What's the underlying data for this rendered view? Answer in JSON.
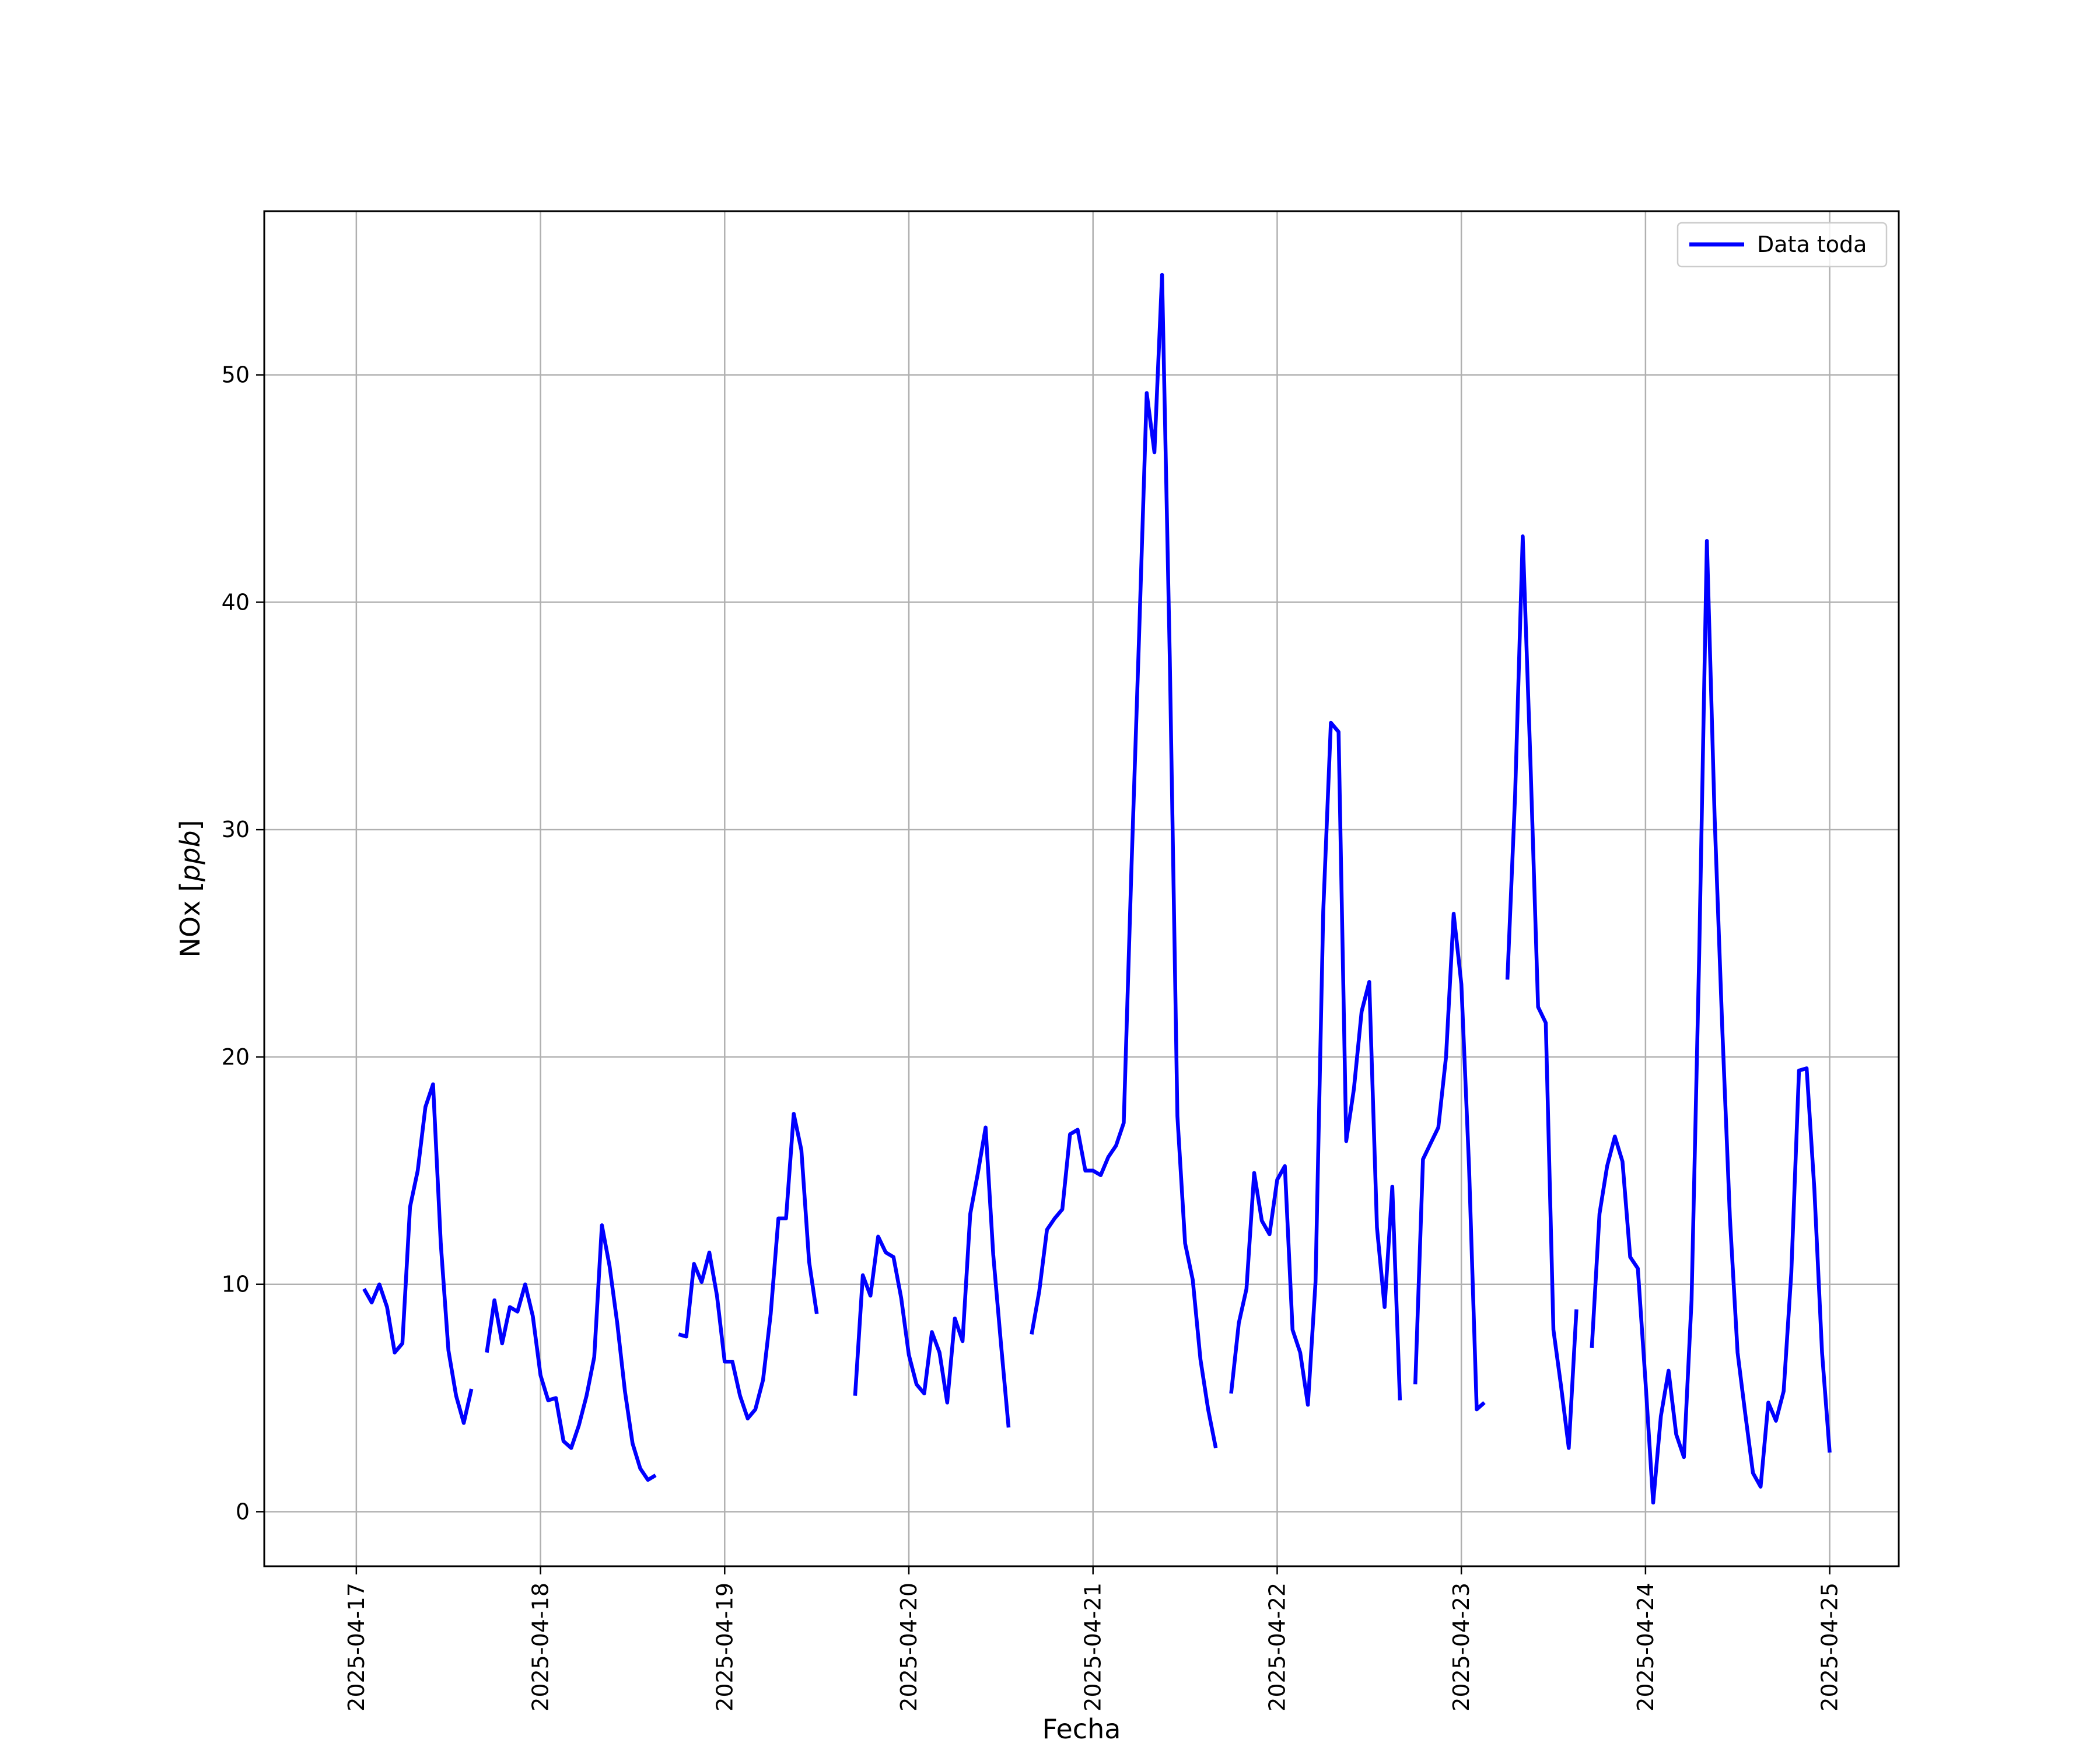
{
  "chart_data": {
    "type": "line",
    "xlabel": "Fecha",
    "ylabel": {
      "prefix": "NOx [",
      "unit": "ppb",
      "suffix": "]"
    },
    "xlim": [
      "2025-04-16 12:00",
      "2025-04-25 09:00"
    ],
    "ylim": [
      -2.4,
      57.2
    ],
    "x_ticks": [
      "2025-04-17",
      "2025-04-18",
      "2025-04-19",
      "2025-04-20",
      "2025-04-21",
      "2025-04-22",
      "2025-04-23",
      "2025-04-24",
      "2025-04-25"
    ],
    "y_ticks": [
      0,
      10,
      20,
      30,
      40,
      50
    ],
    "grid": true,
    "legend_position": "top-right",
    "series": [
      {
        "name": "Data toda",
        "color": "#0000ff",
        "segments": [
          [
            [
              "2025-04-17 01:00",
              9.8
            ],
            [
              "2025-04-17 02:00",
              9.2
            ],
            [
              "2025-04-17 03:00",
              10.0
            ],
            [
              "2025-04-17 04:00",
              9.0
            ],
            [
              "2025-04-17 05:00",
              7.0
            ],
            [
              "2025-04-17 06:00",
              7.4
            ],
            [
              "2025-04-17 07:00",
              13.4
            ],
            [
              "2025-04-17 08:00",
              15.0
            ],
            [
              "2025-04-17 09:00",
              17.8
            ],
            [
              "2025-04-17 10:00",
              18.8
            ],
            [
              "2025-04-17 11:00",
              11.8
            ],
            [
              "2025-04-17 12:00",
              7.1
            ],
            [
              "2025-04-17 13:00",
              5.1
            ],
            [
              "2025-04-17 14:00",
              3.9
            ],
            [
              "2025-04-17 15:00",
              5.4
            ]
          ],
          [
            [
              "2025-04-17 17:00",
              7.0
            ],
            [
              "2025-04-17 18:00",
              9.3
            ],
            [
              "2025-04-17 19:00",
              7.4
            ],
            [
              "2025-04-17 20:00",
              9.0
            ],
            [
              "2025-04-17 21:00",
              8.8
            ],
            [
              "2025-04-17 22:00",
              10.0
            ],
            [
              "2025-04-17 23:00",
              8.6
            ],
            [
              "2025-04-18 00:00",
              6.0
            ],
            [
              "2025-04-18 01:00",
              4.9
            ],
            [
              "2025-04-18 02:00",
              5.0
            ],
            [
              "2025-04-18 03:00",
              3.1
            ],
            [
              "2025-04-18 04:00",
              2.8
            ],
            [
              "2025-04-18 05:00",
              3.8
            ],
            [
              "2025-04-18 06:00",
              5.1
            ],
            [
              "2025-04-18 07:00",
              6.8
            ],
            [
              "2025-04-18 08:00",
              12.6
            ],
            [
              "2025-04-18 09:00",
              10.8
            ],
            [
              "2025-04-18 10:00",
              8.3
            ],
            [
              "2025-04-18 11:00",
              5.3
            ],
            [
              "2025-04-18 12:00",
              3.0
            ],
            [
              "2025-04-18 13:00",
              1.9
            ],
            [
              "2025-04-18 14:00",
              1.4
            ],
            [
              "2025-04-18 15:00",
              1.6
            ]
          ],
          [
            [
              "2025-04-18 18:00",
              7.8
            ],
            [
              "2025-04-18 19:00",
              7.7
            ],
            [
              "2025-04-18 20:00",
              10.9
            ],
            [
              "2025-04-18 21:00",
              10.1
            ],
            [
              "2025-04-18 22:00",
              11.4
            ],
            [
              "2025-04-18 23:00",
              9.5
            ],
            [
              "2025-04-19 00:00",
              6.6
            ],
            [
              "2025-04-19 01:00",
              6.6
            ],
            [
              "2025-04-19 02:00",
              5.1
            ],
            [
              "2025-04-19 03:00",
              4.1
            ],
            [
              "2025-04-19 04:00",
              4.5
            ],
            [
              "2025-04-19 05:00",
              5.8
            ],
            [
              "2025-04-19 06:00",
              8.7
            ],
            [
              "2025-04-19 07:00",
              12.9
            ],
            [
              "2025-04-19 08:00",
              12.9
            ],
            [
              "2025-04-19 09:00",
              17.5
            ],
            [
              "2025-04-19 10:00",
              15.9
            ],
            [
              "2025-04-19 11:00",
              11.0
            ],
            [
              "2025-04-19 12:00",
              8.7
            ]
          ],
          [
            [
              "2025-04-19 17:00",
              5.1
            ],
            [
              "2025-04-19 18:00",
              10.4
            ],
            [
              "2025-04-19 19:00",
              9.5
            ],
            [
              "2025-04-19 20:00",
              12.1
            ],
            [
              "2025-04-19 21:00",
              11.4
            ],
            [
              "2025-04-19 22:00",
              11.2
            ],
            [
              "2025-04-19 23:00",
              9.4
            ],
            [
              "2025-04-20 00:00",
              6.9
            ],
            [
              "2025-04-20 01:00",
              5.6
            ],
            [
              "2025-04-20 02:00",
              5.2
            ],
            [
              "2025-04-20 03:00",
              7.9
            ],
            [
              "2025-04-20 04:00",
              7.0
            ],
            [
              "2025-04-20 05:00",
              4.8
            ],
            [
              "2025-04-20 06:00",
              8.5
            ],
            [
              "2025-04-20 07:00",
              7.5
            ],
            [
              "2025-04-20 08:00",
              13.1
            ],
            [
              "2025-04-20 09:00",
              14.9
            ],
            [
              "2025-04-20 10:00",
              16.9
            ],
            [
              "2025-04-20 11:00",
              11.3
            ],
            [
              "2025-04-20 12:00",
              7.4
            ],
            [
              "2025-04-20 13:00",
              3.7
            ]
          ],
          [
            [
              "2025-04-20 16:00",
              7.8
            ],
            [
              "2025-04-20 17:00",
              9.7
            ],
            [
              "2025-04-20 18:00",
              12.4
            ],
            [
              "2025-04-20 19:00",
              12.9
            ],
            [
              "2025-04-20 20:00",
              13.3
            ],
            [
              "2025-04-20 21:00",
              16.6
            ],
            [
              "2025-04-20 22:00",
              16.8
            ],
            [
              "2025-04-20 23:00",
              15.0
            ],
            [
              "2025-04-21 00:00",
              15.0
            ],
            [
              "2025-04-21 01:00",
              14.8
            ],
            [
              "2025-04-21 02:00",
              15.6
            ],
            [
              "2025-04-21 03:00",
              16.1
            ],
            [
              "2025-04-21 04:00",
              17.1
            ],
            [
              "2025-04-21 05:00",
              28.2
            ],
            [
              "2025-04-21 06:00",
              38.5
            ],
            [
              "2025-04-21 07:00",
              49.2
            ],
            [
              "2025-04-21 08:00",
              46.6
            ],
            [
              "2025-04-21 09:00",
              54.4
            ],
            [
              "2025-04-21 10:00",
              37.6
            ],
            [
              "2025-04-21 11:00",
              17.4
            ],
            [
              "2025-04-21 12:00",
              11.8
            ],
            [
              "2025-04-21 13:00",
              10.2
            ],
            [
              "2025-04-21 14:00",
              6.7
            ],
            [
              "2025-04-21 15:00",
              4.5
            ],
            [
              "2025-04-21 16:00",
              2.8
            ]
          ],
          [
            [
              "2025-04-21 18:00",
              5.2
            ],
            [
              "2025-04-21 19:00",
              8.3
            ],
            [
              "2025-04-21 20:00",
              9.8
            ],
            [
              "2025-04-21 21:00",
              14.9
            ],
            [
              "2025-04-21 22:00",
              12.8
            ],
            [
              "2025-04-21 23:00",
              12.2
            ],
            [
              "2025-04-22 00:00",
              14.6
            ],
            [
              "2025-04-22 01:00",
              15.2
            ],
            [
              "2025-04-22 02:00",
              8.0
            ],
            [
              "2025-04-22 03:00",
              7.0
            ],
            [
              "2025-04-22 04:00",
              4.7
            ],
            [
              "2025-04-22 05:00",
              10.1
            ],
            [
              "2025-04-22 06:00",
              26.4
            ],
            [
              "2025-04-22 07:00",
              34.7
            ],
            [
              "2025-04-22 08:00",
              34.3
            ],
            [
              "2025-04-22 09:00",
              16.3
            ],
            [
              "2025-04-22 10:00",
              18.6
            ],
            [
              "2025-04-22 11:00",
              22.0
            ],
            [
              "2025-04-22 12:00",
              23.3
            ],
            [
              "2025-04-22 13:00",
              12.5
            ],
            [
              "2025-04-22 14:00",
              9.0
            ],
            [
              "2025-04-22 15:00",
              14.3
            ],
            [
              "2025-04-22 16:00",
              4.9
            ]
          ],
          [
            [
              "2025-04-22 18:00",
              5.6
            ],
            [
              "2025-04-22 19:00",
              15.5
            ],
            [
              "2025-04-22 20:00",
              16.2
            ],
            [
              "2025-04-22 21:00",
              16.9
            ],
            [
              "2025-04-22 22:00",
              20.0
            ],
            [
              "2025-04-22 23:00",
              26.3
            ],
            [
              "2025-04-23 00:00",
              23.2
            ],
            [
              "2025-04-23 01:00",
              15.2
            ],
            [
              "2025-04-23 02:00",
              4.5
            ],
            [
              "2025-04-23 03:00",
              4.8
            ]
          ],
          [
            [
              "2025-04-23 06:00",
              23.4
            ],
            [
              "2025-04-23 07:00",
              31.5
            ],
            [
              "2025-04-23 08:00",
              42.9
            ],
            [
              "2025-04-23 09:00",
              33.0
            ],
            [
              "2025-04-23 10:00",
              22.2
            ],
            [
              "2025-04-23 11:00",
              21.5
            ],
            [
              "2025-04-23 12:00",
              8.0
            ],
            [
              "2025-04-23 13:00",
              5.5
            ],
            [
              "2025-04-23 14:00",
              2.8
            ],
            [
              "2025-04-23 15:00",
              8.9
            ]
          ],
          [
            [
              "2025-04-23 17:00",
              7.2
            ],
            [
              "2025-04-23 18:00",
              13.1
            ],
            [
              "2025-04-23 19:00",
              15.2
            ],
            [
              "2025-04-23 20:00",
              16.5
            ],
            [
              "2025-04-23 21:00",
              15.4
            ],
            [
              "2025-04-23 22:00",
              11.2
            ],
            [
              "2025-04-23 23:00",
              10.7
            ],
            [
              "2025-04-24 00:00",
              5.7
            ],
            [
              "2025-04-24 01:00",
              0.4
            ],
            [
              "2025-04-24 02:00",
              4.2
            ],
            [
              "2025-04-24 03:00",
              6.2
            ],
            [
              "2025-04-24 04:00",
              3.4
            ],
            [
              "2025-04-24 05:00",
              2.4
            ],
            [
              "2025-04-24 06:00",
              9.3
            ],
            [
              "2025-04-24 07:00",
              24.6
            ],
            [
              "2025-04-24 08:00",
              42.7
            ],
            [
              "2025-04-24 09:00",
              30.6
            ],
            [
              "2025-04-24 10:00",
              21.3
            ],
            [
              "2025-04-24 11:00",
              12.9
            ],
            [
              "2025-04-24 12:00",
              7.0
            ],
            [
              "2025-04-24 13:00",
              4.3
            ],
            [
              "2025-04-24 14:00",
              1.7
            ],
            [
              "2025-04-24 15:00",
              1.1
            ],
            [
              "2025-04-24 16:00",
              4.8
            ],
            [
              "2025-04-24 17:00",
              4.0
            ],
            [
              "2025-04-24 18:00",
              5.3
            ],
            [
              "2025-04-24 19:00",
              10.5
            ],
            [
              "2025-04-24 20:00",
              19.4
            ],
            [
              "2025-04-24 21:00",
              19.5
            ],
            [
              "2025-04-24 22:00",
              14.2
            ],
            [
              "2025-04-24 23:00",
              7.0
            ],
            [
              "2025-04-25 00:00",
              2.6
            ]
          ]
        ]
      }
    ]
  }
}
